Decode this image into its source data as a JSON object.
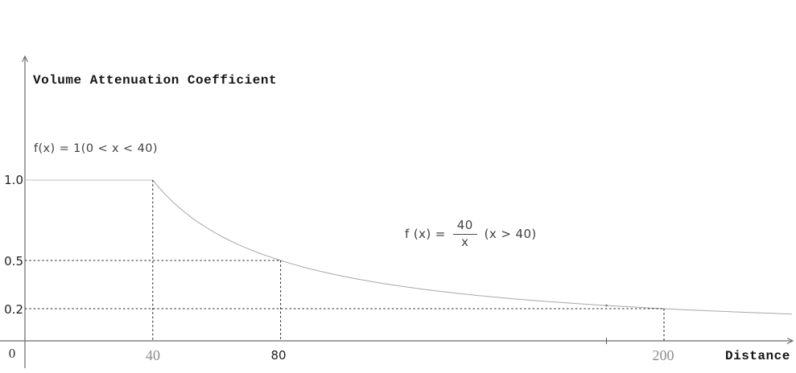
{
  "chart": {
    "title": "Volume Attenuation Coefficient",
    "x_axis_label": "Distance",
    "origin_label": "0"
  },
  "formulas": {
    "piece1": "f(x) = 1(0 < x < 40)",
    "piece2_prefix": "f (x) =",
    "piece2_numerator": "40",
    "piece2_denominator": "x",
    "piece2_suffix": "(x > 40)"
  },
  "axes": {
    "y_ticks": [
      {
        "value": 1.0,
        "label": "1.0"
      },
      {
        "value": 0.5,
        "label": "0.5"
      },
      {
        "value": 0.2,
        "label": "0.2"
      }
    ],
    "x_ticks": [
      {
        "value": 40,
        "label": "40"
      },
      {
        "value": 80,
        "label": "80"
      },
      {
        "value": 200,
        "label": "200"
      }
    ]
  },
  "chart_data": {
    "type": "line",
    "title": "Volume Attenuation Coefficient",
    "xlabel": "Distance",
    "ylabel": "Volume Attenuation Coefficient",
    "xlim": [
      0,
      241
    ],
    "ylim": [
      0,
      1.77
    ],
    "grid": false,
    "piecewise": [
      {
        "expr": "f(x) = 1",
        "domain": "0 < x < 40"
      },
      {
        "expr": "f(x) = 40/x",
        "domain": "x > 40"
      }
    ],
    "flat_segment": {
      "value": 1.0,
      "x_range": [
        0,
        40
      ]
    },
    "hyperbola": {
      "k": 40,
      "x_range": [
        40,
        240
      ]
    },
    "key_points": [
      [
        0,
        1.0
      ],
      [
        40,
        1.0
      ],
      [
        80,
        0.5
      ],
      [
        200,
        0.2
      ]
    ],
    "guide_lines": [
      {
        "x": 40,
        "y": 1.0,
        "horizontal": false
      },
      {
        "x": 80,
        "y": 0.5,
        "horizontal": true
      },
      {
        "x": 200,
        "y": 0.2,
        "horizontal": true
      }
    ],
    "minor_marks": {
      "axis_tick_x": 182,
      "curve_dot_x": 182
    },
    "x_tick_values": [
      0,
      40,
      80,
      200
    ],
    "y_tick_values": [
      0.2,
      0.5,
      1.0
    ]
  }
}
